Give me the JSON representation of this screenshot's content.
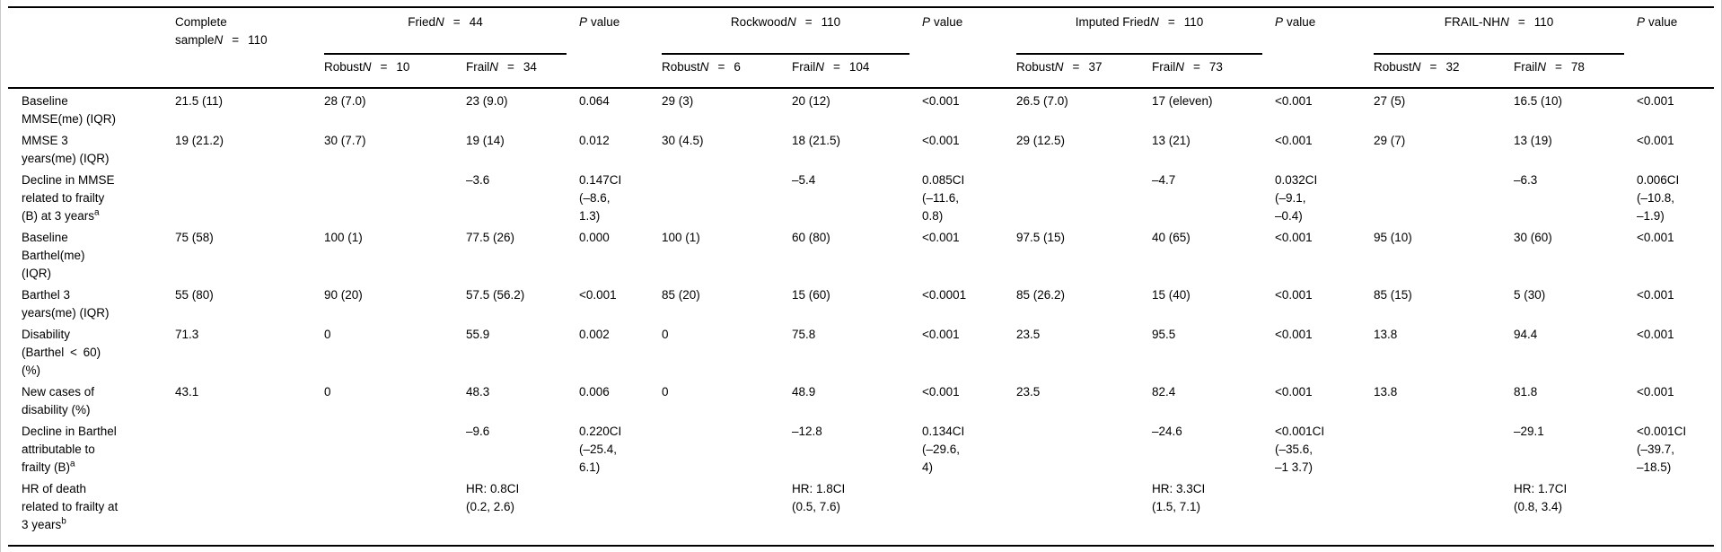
{
  "header": {
    "n_symbol": "N",
    "eq": "=",
    "p_label": {
      "p": "P",
      "rest": "value"
    },
    "robust_label": "Robust",
    "frail_label": "Frail",
    "complete": {
      "line1": "Complete",
      "line2_prefix": "sample",
      "count": "110"
    },
    "groups": [
      {
        "name": "Fried",
        "count": "44",
        "robust_n": "10",
        "frail_n": "34"
      },
      {
        "name": "Rockwood",
        "count": "110",
        "robust_n": "6",
        "frail_n": "104"
      },
      {
        "name": "Imputed Fried",
        "count": "110",
        "robust_n": "37",
        "frail_n": "73"
      },
      {
        "name": "FRAIL-NH",
        "count": "110",
        "robust_n": "32",
        "frail_n": "78"
      }
    ]
  },
  "table": {
    "rows": [
      {
        "label": "Baseline\nMMSE(me) (IQR)",
        "sup": "",
        "cells": [
          "21.5 (11)",
          "28 (7.0)",
          "23 (9.0)",
          "0.064",
          "29 (3)",
          "20 (12)",
          "<0.001",
          "26.5 (7.0)",
          "17 (eleven)",
          "<0.001",
          "27 (5)",
          "16.5 (10)",
          "<0.001"
        ]
      },
      {
        "label": "MMSE 3\nyears(me) (IQR)",
        "sup": "",
        "cells": [
          "19 (21.2)",
          "30 (7.7)",
          "19 (14)",
          "0.012",
          "30 (4.5)",
          "18 (21.5)",
          "<0.001",
          "29 (12.5)",
          "13 (21)",
          "<0.001",
          "29 (7)",
          "13 (19)",
          "<0.001"
        ]
      },
      {
        "label": "Decline in MMSE\nrelated to frailty\n(B) at 3 years",
        "sup": "a",
        "cells": [
          "",
          "",
          "–3.6",
          "0.147CI\n(–8.6,\n1.3)",
          "",
          "–5.4",
          "0.085CI\n(–11.6,\n0.8)",
          "",
          "–4.7",
          "0.032CI\n(–9.1,\n–0.4)",
          "",
          "–6.3",
          "0.006CI\n(–10.8,\n–1.9)"
        ]
      },
      {
        "label": "Baseline\nBarthel(me)\n(IQR)",
        "sup": "",
        "cells": [
          "75 (58)",
          "100 (1)",
          "77.5 (26)",
          "0.000",
          "100 (1)",
          "60 (80)",
          "<0.001",
          "97.5 (15)",
          "40 (65)",
          "<0.001",
          "95 (10)",
          "30 (60)",
          "<0.001"
        ]
      },
      {
        "label": "Barthel 3\nyears(me) (IQR)",
        "sup": "",
        "cells": [
          "55 (80)",
          "90 (20)",
          "57.5 (56.2)",
          "<0.001",
          "85 (20)",
          "15 (60)",
          "<0.0001",
          "85 (26.2)",
          "15 (40)",
          "<0.001",
          "85 (15)",
          "5 (30)",
          "<0.001"
        ]
      },
      {
        "label": "Disability\n(Barthel < 60)\n(%)",
        "sup": "",
        "cells": [
          "71.3",
          "0",
          "55.9",
          "0.002",
          "0",
          "75.8",
          "<0.001",
          "23.5",
          "95.5",
          "<0.001",
          "13.8",
          "94.4",
          "<0.001"
        ]
      },
      {
        "label": "New cases of\ndisability (%)",
        "sup": "",
        "cells": [
          "43.1",
          "0",
          "48.3",
          "0.006",
          "0",
          "48.9",
          "<0.001",
          "23.5",
          "82.4",
          "<0.001",
          "13.8",
          "81.8",
          "<0.001"
        ]
      },
      {
        "label": "Decline in Barthel\nattributable to\nfrailty (B)",
        "sup": "a",
        "cells": [
          "",
          "",
          "–9.6",
          "0.220CI\n(–25.4,\n6.1)",
          "",
          "–12.8",
          "0.134CI\n(–29.6,\n4)",
          "",
          "–24.6",
          "<0.001CI\n(–35.6,\n–1 3.7)",
          "",
          "–29.1",
          "<0.001CI\n(–39.7,\n–18.5)"
        ]
      },
      {
        "label": "HR of death\nrelated to frailty at\n3 years",
        "sup": "b",
        "cells": [
          "",
          "",
          "HR: 0.8CI\n(0.2, 2.6)",
          "",
          "",
          "HR: 1.8CI\n(0.5, 7.6)",
          "",
          "",
          "HR: 3.3CI\n(1.5, 7.1)",
          "",
          "",
          "HR: 1.7CI\n(0.8, 3.4)",
          ""
        ]
      }
    ]
  }
}
